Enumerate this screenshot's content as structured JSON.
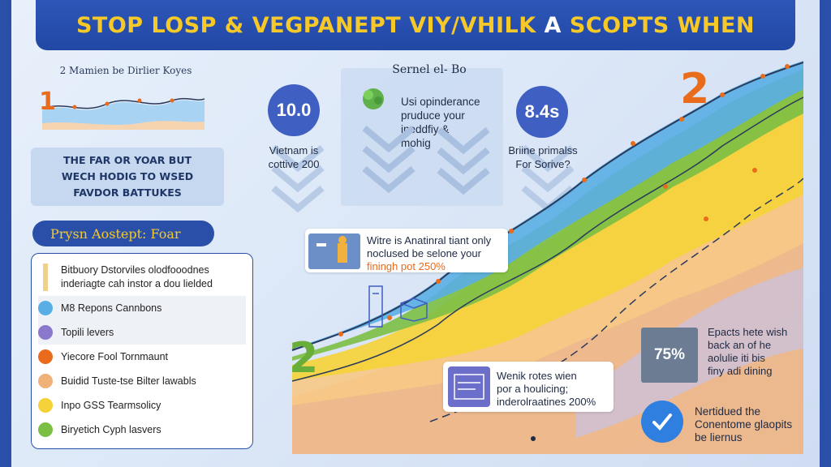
{
  "title": {
    "part1": "STOP LOSP & VEGPANEPT VIY/VHILK",
    "part2": "A",
    "part3": "SCOPTS WHEN"
  },
  "mini_chart": {
    "title": "2 Mamien be Dirlier Koyes",
    "number": "1"
  },
  "callout": {
    "lines": [
      "THE FAR OR YOAR BUT",
      "WECH HODIG TO WSED",
      "FAVDOR BATTUKES"
    ]
  },
  "legend": {
    "title": "Prysn Aostept: Foar",
    "lead": "Bitbuory Dstorviles olodfooodnes inderiagte cah instor a dou lielded",
    "items": [
      {
        "label": "M8 Repons Cannbons",
        "color": "#5aaee6"
      },
      {
        "label": "Topili levers",
        "color": "#8a78cc"
      },
      {
        "label": "Yiecore Fool Tornmaunt",
        "color": "#e96b1c"
      },
      {
        "label": "Buidid Tuste-tse Bilter lawabls",
        "color": "#f1b27a"
      },
      {
        "label": "Inpo GSS Tearmsolicy",
        "color": "#f6d23a"
      },
      {
        "label": "Biryetich Cyph lasvers",
        "color": "#7bbf45"
      }
    ]
  },
  "middle": {
    "header": "Sernel el- Bo",
    "text": [
      "Usi opinderance",
      "pruduce your",
      "ineddfiy &",
      "mohig"
    ]
  },
  "stats": [
    {
      "value": "10.0",
      "caption": [
        "Vietnam is",
        "cottive 200"
      ]
    },
    {
      "value": "8.4s",
      "caption": [
        "Briine primalss",
        "For Sorive?"
      ]
    }
  ],
  "big_numbers": {
    "top_right": "2",
    "bottom_left": "2"
  },
  "notes": [
    {
      "lines": [
        "Witre is Anatinral tiant only",
        "noclused be selone your"
      ],
      "highlight": "finingh pot 250%"
    },
    {
      "lines": [
        "Wenik rotes wien",
        "por a houlicing;",
        "inderolraatines 200%"
      ]
    },
    {
      "lines": [
        "Epacts hete wish",
        "back an of he",
        "aolulie iti bis",
        "finy adi dining"
      ]
    }
  ],
  "stat_square": "75%",
  "footer": {
    "lines": [
      "Nertidued the",
      "Conentome glaopits",
      "be liernus"
    ]
  },
  "chart_data": {
    "type": "area",
    "title": "",
    "xlabel": "",
    "ylabel": "",
    "series": [
      {
        "color": "#f1b27a"
      },
      {
        "color": "#f6c986"
      },
      {
        "color": "#f6d23a"
      },
      {
        "color": "#7bbf45"
      },
      {
        "color": "#5aaee6"
      },
      {
        "color": "#b9d8f2"
      }
    ],
    "grid": false
  }
}
